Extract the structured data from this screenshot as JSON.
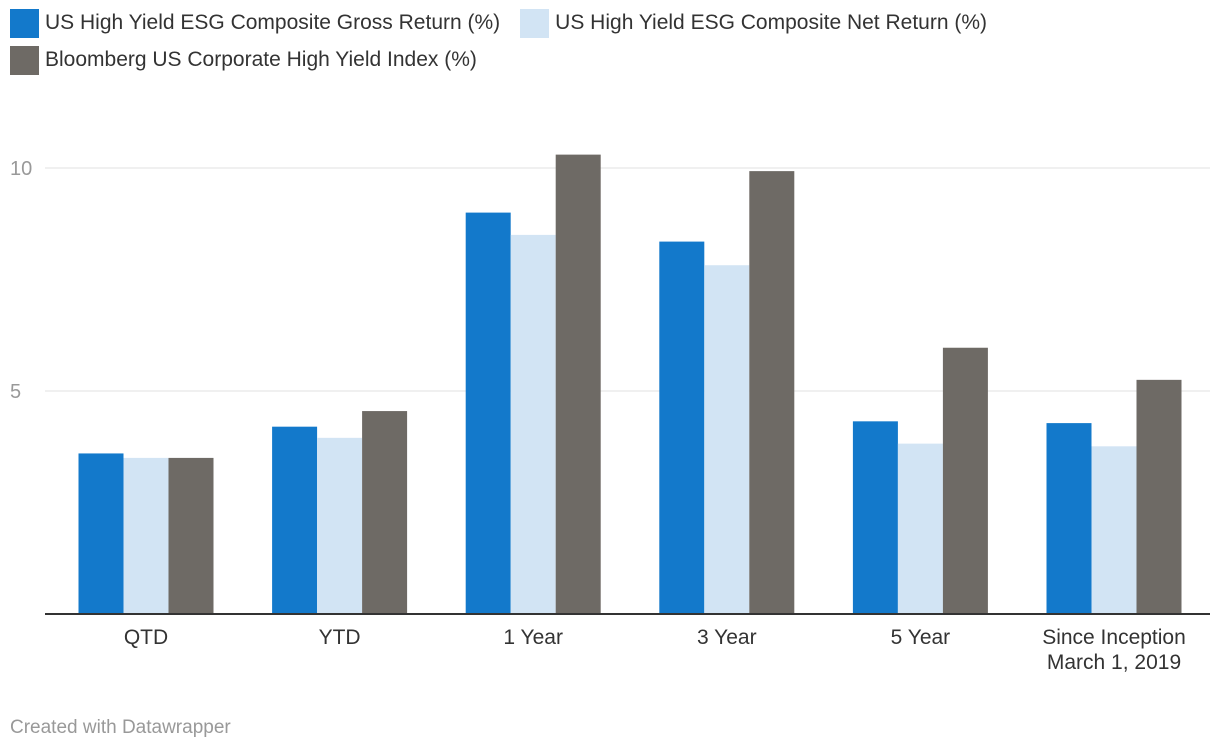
{
  "chart_data": {
    "type": "bar",
    "categories": [
      "QTD",
      "YTD",
      "1 Year",
      "3 Year",
      "5 Year",
      "Since Inception March 1, 2019"
    ],
    "category_lines": [
      [
        "QTD"
      ],
      [
        "YTD"
      ],
      [
        "1 Year"
      ],
      [
        "3 Year"
      ],
      [
        "5 Year"
      ],
      [
        "Since Inception",
        "March 1, 2019"
      ]
    ],
    "series": [
      {
        "name": "US High Yield ESG Composite Gross Return (%)",
        "color": "#1379cb",
        "values": [
          3.6,
          4.2,
          9.0,
          8.35,
          4.32,
          4.28
        ]
      },
      {
        "name": "US High Yield ESG Composite Net Return (%)",
        "color": "#d2e4f4",
        "values": [
          3.5,
          3.95,
          8.5,
          7.82,
          3.82,
          3.76
        ]
      },
      {
        "name": "Bloomberg US Corporate High Yield Index (%)",
        "color": "#6e6a65",
        "values": [
          3.5,
          4.55,
          10.3,
          9.93,
          5.97,
          5.25
        ]
      }
    ],
    "yticks": [
      5,
      10
    ],
    "ylim": [
      0,
      10.6
    ],
    "grid": true,
    "legend_position": "top-left",
    "title": "",
    "xlabel": "",
    "ylabel": ""
  },
  "footer": "Created with Datawrapper"
}
